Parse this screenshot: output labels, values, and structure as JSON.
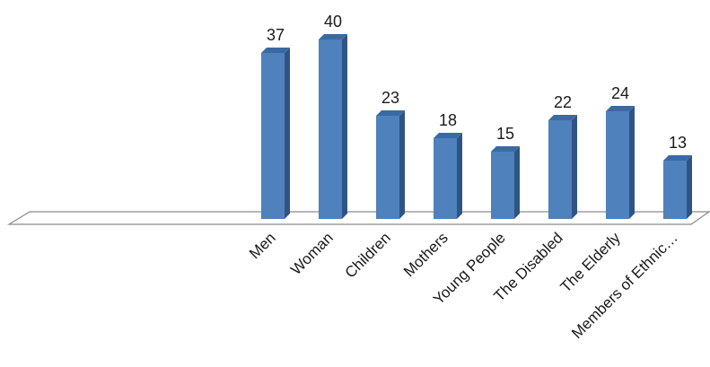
{
  "chart_data": {
    "type": "bar",
    "categories": [
      "Men",
      "Woman",
      "Children",
      "Mothers",
      "Young People",
      "The Disabled",
      "The Elderly",
      "Members of Ethnic…"
    ],
    "values": [
      37,
      40,
      23,
      18,
      15,
      22,
      24,
      13
    ],
    "title": "",
    "xlabel": "",
    "ylabel": "",
    "ylim": [
      0,
      40
    ],
    "grid": false,
    "legend": "none",
    "style": "3d-column",
    "colors": {
      "bar_front": "#4f81bd",
      "bar_side": "#2f5484",
      "bar_top": "#3a6aa3",
      "floor_stroke": "#8a8a8a",
      "floor_fill": "#ffffff"
    }
  }
}
